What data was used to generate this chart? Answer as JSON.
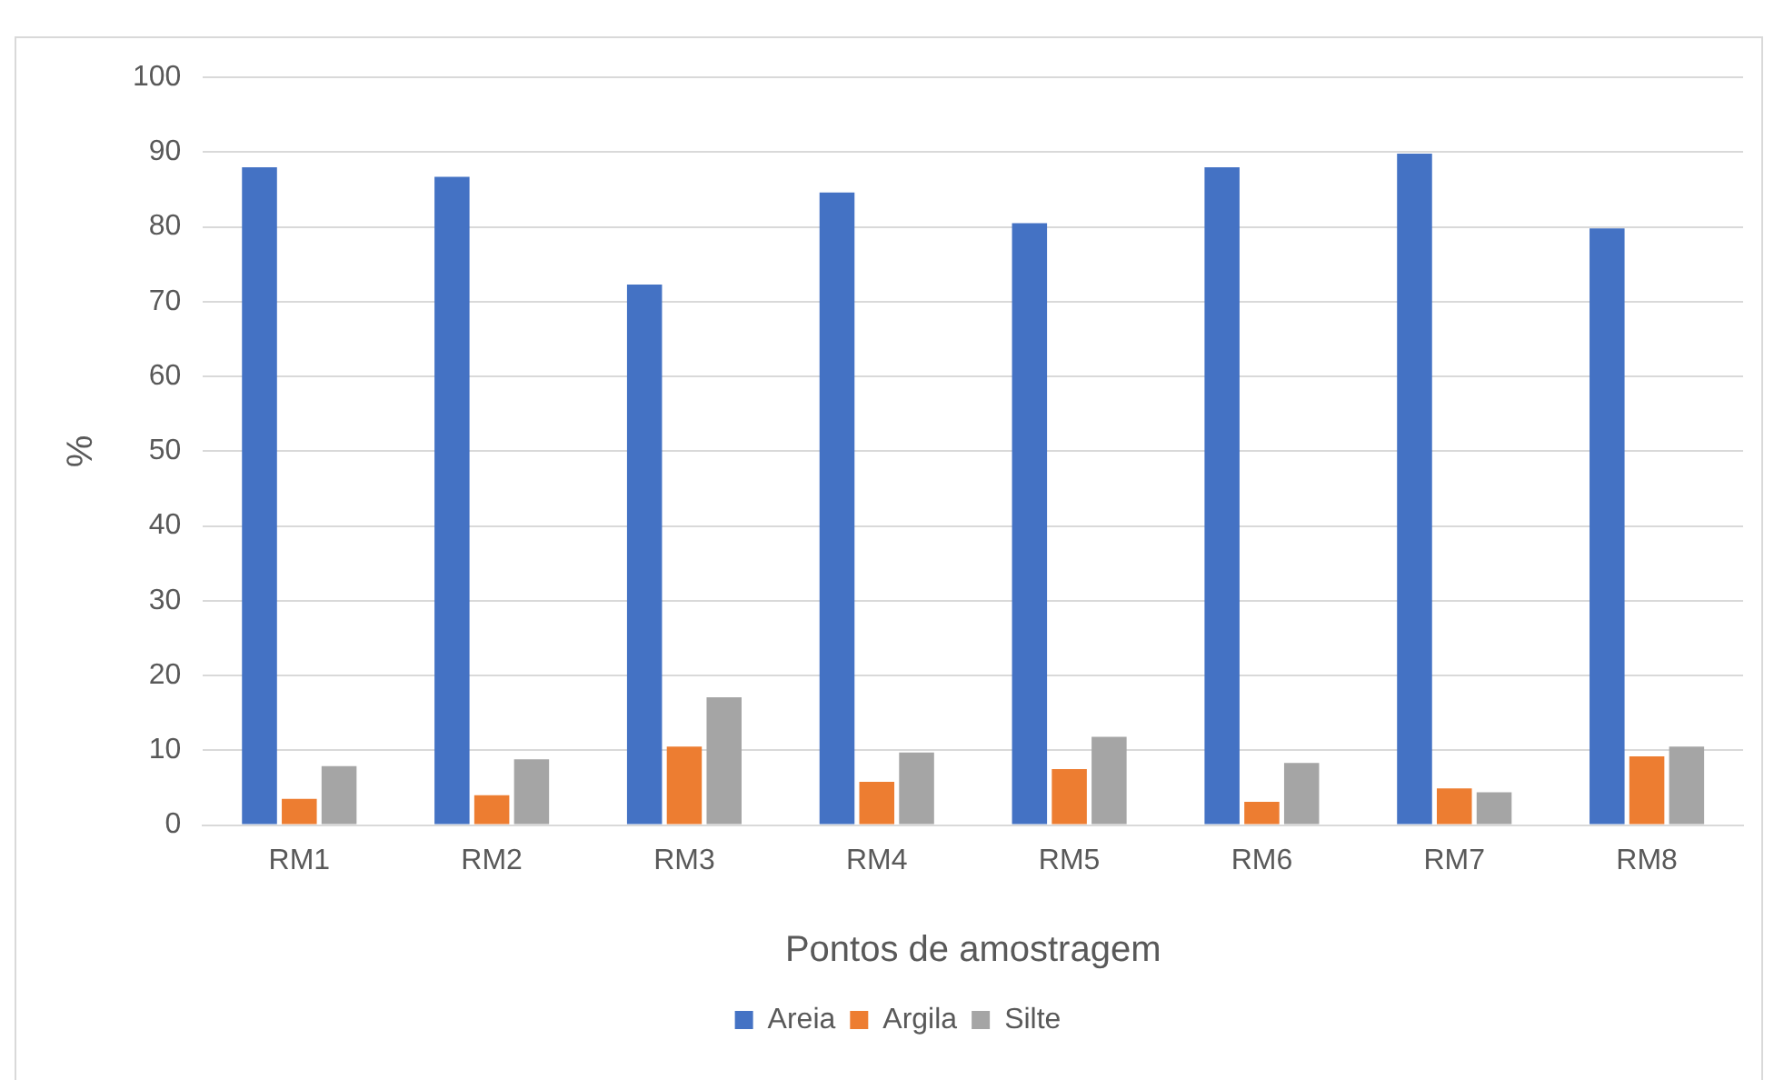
{
  "chart_data": {
    "type": "bar",
    "xlabel": "Pontos de amostragem",
    "ylabel": "%",
    "categories": [
      "RM1",
      "RM2",
      "RM3",
      "RM4",
      "RM5",
      "RM6",
      "RM7",
      "RM8"
    ],
    "series": [
      {
        "name": "Areia",
        "color": "#4472c4",
        "values": [
          88.0,
          86.7,
          72.3,
          84.6,
          80.5,
          88.0,
          89.8,
          79.8
        ]
      },
      {
        "name": "Argila",
        "color": "#ed7d31",
        "values": [
          3.5,
          4.0,
          10.5,
          5.8,
          7.5,
          3.1,
          4.9,
          9.2
        ]
      },
      {
        "name": "Silte",
        "color": "#a5a5a5",
        "values": [
          7.9,
          8.8,
          17.1,
          9.7,
          11.8,
          8.3,
          4.4,
          10.5
        ]
      }
    ],
    "ylim": [
      0,
      100
    ],
    "yticks": [
      0,
      10,
      20,
      30,
      40,
      50,
      60,
      70,
      80,
      90,
      100
    ],
    "grid": "y",
    "legend": "bottom"
  }
}
